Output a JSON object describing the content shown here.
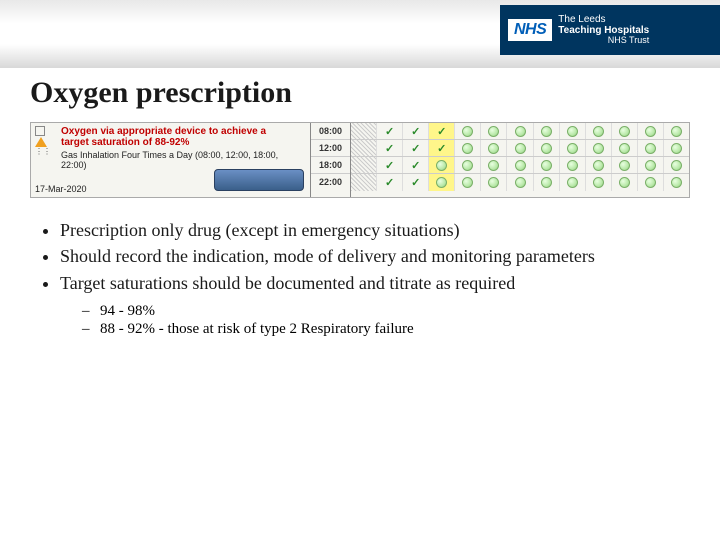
{
  "header": {
    "logo_text": "NHS",
    "trust_line1": "The Leeds",
    "trust_line2": "Teaching Hospitals",
    "trust_line3": "NHS Trust"
  },
  "title": "Oxygen prescription",
  "chart": {
    "rx_title_line1": "Oxygen via appropriate device to achieve a",
    "rx_title_line2": "target saturation of 88-92%",
    "rx_sub": "Gas Inhalation Four Times a Day (08:00, 12:00, 18:00, 22:00)",
    "date": "17-Mar-2020",
    "times": [
      "08:00",
      "12:00",
      "18:00",
      "22:00"
    ],
    "columns": 13,
    "highlight_col": 4,
    "rows": [
      {
        "hatch_until": 1,
        "ticks": [
          2,
          3
        ],
        "tick_hl": 4,
        "circles_from": 5
      },
      {
        "hatch_until": 1,
        "ticks": [
          2,
          3
        ],
        "tick_hl": 4,
        "circles_from": 5
      },
      {
        "hatch_until": 1,
        "ticks": [
          2,
          3
        ],
        "tick_hl": null,
        "circles_from": 4
      },
      {
        "hatch_until": 1,
        "ticks": [
          2,
          3
        ],
        "tick_hl": null,
        "circles_from": 4
      }
    ],
    "colors": {
      "tick": "#2a8a2a",
      "highlight": "#fff68a",
      "rx_title": "#c00000",
      "circle_fill": "#b8e8a8",
      "circle_border": "#7ab068"
    }
  },
  "bullets": {
    "items": [
      "Prescription only drug (except in emergency situations)",
      "Should record the indication, mode of delivery and monitoring parameters",
      "Target saturations should be documented and titrate as required"
    ],
    "sub_items": [
      "94 - 98%",
      "88 - 92% - those at risk of type 2 Respiratory failure"
    ]
  }
}
